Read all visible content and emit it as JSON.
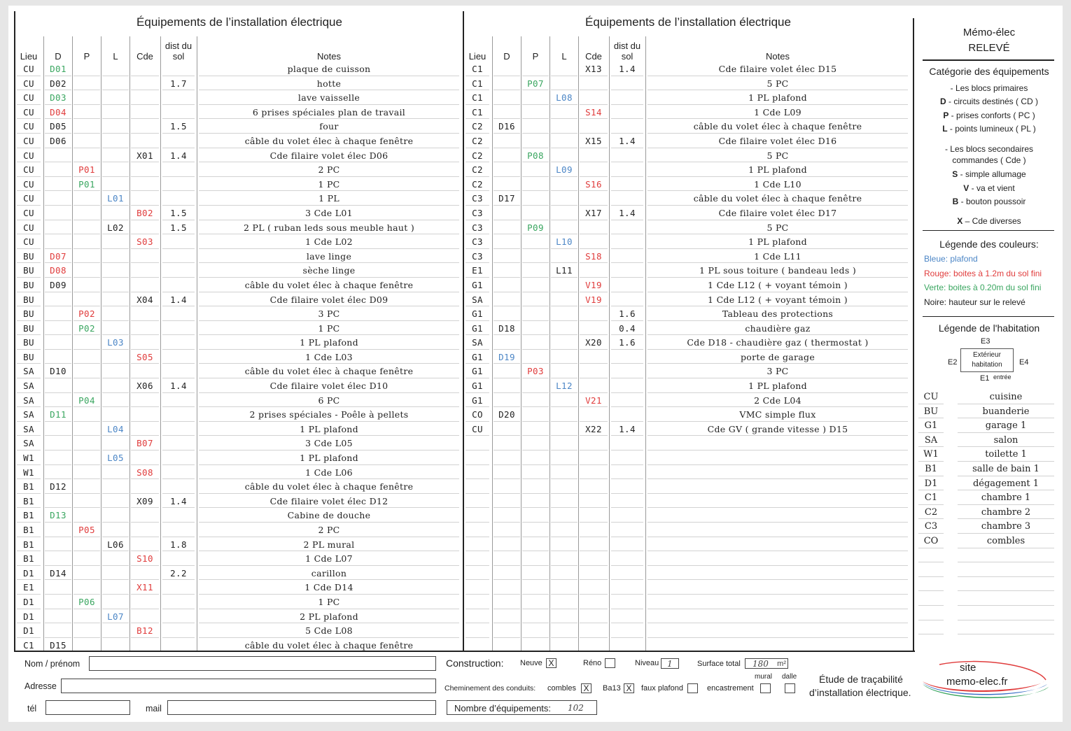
{
  "table_title": "Équipements de l’installation électrique",
  "headers": {
    "lieu": "Lieu",
    "d": "D",
    "p": "P",
    "l": "L",
    "cde": "Cde",
    "dist": "dist du sol",
    "notes": "Notes"
  },
  "left_rows": [
    [
      "CU",
      "D01",
      "",
      "",
      "",
      "",
      "plaque de cuisson",
      "green"
    ],
    [
      "CU",
      "D02",
      "",
      "",
      "",
      "1.7",
      "hotte",
      ""
    ],
    [
      "CU",
      "D03",
      "",
      "",
      "",
      "",
      "lave vaisselle",
      "green"
    ],
    [
      "CU",
      "D04",
      "",
      "",
      "",
      "",
      "6 prises spéciales plan de travail",
      "red"
    ],
    [
      "CU",
      "D05",
      "",
      "",
      "",
      "1.5",
      "four",
      ""
    ],
    [
      "CU",
      "D06",
      "",
      "",
      "",
      "",
      "câble du volet élec à chaque fenêtre",
      ""
    ],
    [
      "CU",
      "",
      "",
      "",
      "X01",
      "1.4",
      "Cde filaire volet élec D06",
      ""
    ],
    [
      "CU",
      "",
      "P01",
      "",
      "",
      "",
      "2 PC",
      "red"
    ],
    [
      "CU",
      "",
      "P01",
      "",
      "",
      "",
      "1 PC",
      "green"
    ],
    [
      "CU",
      "",
      "",
      "L01",
      "",
      "",
      "1 PL",
      "blue"
    ],
    [
      "CU",
      "",
      "",
      "",
      "B02",
      "1.5",
      "3 Cde  L01",
      "red"
    ],
    [
      "CU",
      "",
      "",
      "L02",
      "",
      "1.5",
      "2 PL ( ruban leds sous meuble haut )",
      ""
    ],
    [
      "CU",
      "",
      "",
      "",
      "S03",
      "",
      "1 Cde  L02",
      "red"
    ],
    [
      "BU",
      "D07",
      "",
      "",
      "",
      "",
      "lave linge",
      "red"
    ],
    [
      "BU",
      "D08",
      "",
      "",
      "",
      "",
      "sèche linge",
      "red"
    ],
    [
      "BU",
      "D09",
      "",
      "",
      "",
      "",
      "câble du volet élec à chaque fenêtre",
      ""
    ],
    [
      "BU",
      "",
      "",
      "",
      "X04",
      "1.4",
      "Cde filaire volet élec D09",
      ""
    ],
    [
      "BU",
      "",
      "P02",
      "",
      "",
      "",
      "3 PC",
      "red"
    ],
    [
      "BU",
      "",
      "P02",
      "",
      "",
      "",
      "1 PC",
      "green"
    ],
    [
      "BU",
      "",
      "",
      "L03",
      "",
      "",
      "1 PL plafond",
      "blue"
    ],
    [
      "BU",
      "",
      "",
      "",
      "S05",
      "",
      "1 Cde  L03",
      "red"
    ],
    [
      "SA",
      "D10",
      "",
      "",
      "",
      "",
      "câble du volet élec à chaque fenêtre",
      ""
    ],
    [
      "SA",
      "",
      "",
      "",
      "X06",
      "1.4",
      "Cde filaire volet élec D10",
      ""
    ],
    [
      "SA",
      "",
      "P04",
      "",
      "",
      "",
      "6 PC",
      "green"
    ],
    [
      "SA",
      "D11",
      "",
      "",
      "",
      "",
      "2 prises spéciales - Poêle à pellets",
      "green"
    ],
    [
      "SA",
      "",
      "",
      "L04",
      "",
      "",
      "1 PL plafond",
      "blue"
    ],
    [
      "SA",
      "",
      "",
      "",
      "B07",
      "",
      "3 Cde  L05",
      "red"
    ],
    [
      "W1",
      "",
      "",
      "L05",
      "",
      "",
      "1 PL plafond",
      "blue"
    ],
    [
      "W1",
      "",
      "",
      "",
      "S08",
      "",
      "1 Cde  L06",
      "red"
    ],
    [
      "B1",
      "D12",
      "",
      "",
      "",
      "",
      "câble du volet élec à chaque fenêtre",
      ""
    ],
    [
      "B1",
      "",
      "",
      "",
      "X09",
      "1.4",
      "Cde filaire volet élec D12",
      ""
    ],
    [
      "B1",
      "D13",
      "",
      "",
      "",
      "",
      "Cabine de douche",
      "green"
    ],
    [
      "B1",
      "",
      "P05",
      "",
      "",
      "",
      "2 PC",
      "red"
    ],
    [
      "B1",
      "",
      "",
      "L06",
      "",
      "1.8",
      "2 PL mural",
      ""
    ],
    [
      "B1",
      "",
      "",
      "",
      "S10",
      "",
      "1 Cde  L07",
      "red"
    ],
    [
      "D1",
      "D14",
      "",
      "",
      "",
      "2.2",
      "carillon",
      ""
    ],
    [
      "E1",
      "",
      "",
      "",
      "X11",
      "",
      "1 Cde  D14",
      "red"
    ],
    [
      "D1",
      "",
      "P06",
      "",
      "",
      "",
      "1 PC",
      "green"
    ],
    [
      "D1",
      "",
      "",
      "L07",
      "",
      "",
      "2 PL plafond",
      "blue"
    ],
    [
      "D1",
      "",
      "",
      "",
      "B12",
      "",
      "5 Cde  L08",
      "red"
    ],
    [
      "C1",
      "D15",
      "",
      "",
      "",
      "",
      "câble du volet élec à chaque fenêtre",
      ""
    ]
  ],
  "right_rows": [
    [
      "C1",
      "",
      "",
      "",
      "X13",
      "1.4",
      "Cde filaire volet élec D15",
      ""
    ],
    [
      "C1",
      "",
      "P07",
      "",
      "",
      "",
      "5 PC",
      "green"
    ],
    [
      "C1",
      "",
      "",
      "L08",
      "",
      "",
      "1 PL plafond",
      "blue"
    ],
    [
      "C1",
      "",
      "",
      "",
      "S14",
      "",
      "1 Cde  L09",
      "red"
    ],
    [
      "C2",
      "D16",
      "",
      "",
      "",
      "",
      "câble du volet élec à chaque fenêtre",
      ""
    ],
    [
      "C2",
      "",
      "",
      "",
      "X15",
      "1.4",
      "Cde filaire volet élec D16",
      ""
    ],
    [
      "C2",
      "",
      "P08",
      "",
      "",
      "",
      "5 PC",
      "green"
    ],
    [
      "C2",
      "",
      "",
      "L09",
      "",
      "",
      "1 PL plafond",
      "blue"
    ],
    [
      "C2",
      "",
      "",
      "",
      "S16",
      "",
      "1 Cde  L10",
      "red"
    ],
    [
      "C3",
      "D17",
      "",
      "",
      "",
      "",
      "câble du volet élec à chaque fenêtre",
      ""
    ],
    [
      "C3",
      "",
      "",
      "",
      "X17",
      "1.4",
      "Cde filaire volet élec D17",
      ""
    ],
    [
      "C3",
      "",
      "P09",
      "",
      "",
      "",
      "5 PC",
      "green"
    ],
    [
      "C3",
      "",
      "",
      "L10",
      "",
      "",
      "1 PL plafond",
      "blue"
    ],
    [
      "C3",
      "",
      "",
      "",
      "S18",
      "",
      "1 Cde  L11",
      "red"
    ],
    [
      "E1",
      "",
      "",
      "L11",
      "",
      "",
      "1 PL sous toiture ( bandeau leds )",
      ""
    ],
    [
      "G1",
      "",
      "",
      "",
      "V19",
      "",
      "1 Cde  L12 ( + voyant témoin )",
      "red"
    ],
    [
      "SA",
      "",
      "",
      "",
      "V19",
      "",
      "1 Cde  L12 ( + voyant témoin )",
      "red"
    ],
    [
      "G1",
      "",
      "",
      "",
      "",
      "1.6",
      "Tableau des protections",
      ""
    ],
    [
      "G1",
      "D18",
      "",
      "",
      "",
      "0.4",
      "chaudière gaz",
      ""
    ],
    [
      "SA",
      "",
      "",
      "",
      "X20",
      "1.6",
      "Cde D18 - chaudière gaz ( thermostat )",
      ""
    ],
    [
      "G1",
      "D19",
      "",
      "",
      "",
      "",
      "porte de garage",
      "blue"
    ],
    [
      "G1",
      "",
      "P03",
      "",
      "",
      "",
      "3 PC",
      "red"
    ],
    [
      "G1",
      "",
      "",
      "L12",
      "",
      "",
      "1 PL plafond",
      "blue"
    ],
    [
      "G1",
      "",
      "",
      "",
      "V21",
      "",
      "2 Cde  L04",
      "red"
    ],
    [
      "CO",
      "D20",
      "",
      "",
      "",
      "",
      "VMC simple flux",
      ""
    ],
    [
      "CU",
      "",
      "",
      "",
      "X22",
      "1.4",
      "Cde GV ( grande vitesse ) D15",
      ""
    ],
    [
      "",
      "",
      "",
      "",
      "",
      "",
      "",
      ""
    ],
    [
      "",
      "",
      "",
      "",
      "",
      "",
      "",
      ""
    ],
    [
      "",
      "",
      "",
      "",
      "",
      "",
      "",
      ""
    ],
    [
      "",
      "",
      "",
      "",
      "",
      "",
      "",
      ""
    ],
    [
      "",
      "",
      "",
      "",
      "",
      "",
      "",
      ""
    ],
    [
      "",
      "",
      "",
      "",
      "",
      "",
      "",
      ""
    ],
    [
      "",
      "",
      "",
      "",
      "",
      "",
      "",
      ""
    ],
    [
      "",
      "",
      "",
      "",
      "",
      "",
      "",
      ""
    ],
    [
      "",
      "",
      "",
      "",
      "",
      "",
      "",
      ""
    ],
    [
      "",
      "",
      "",
      "",
      "",
      "",
      "",
      ""
    ],
    [
      "",
      "",
      "",
      "",
      "",
      "",
      "",
      ""
    ],
    [
      "",
      "",
      "",
      "",
      "",
      "",
      "",
      ""
    ],
    [
      "",
      "",
      "",
      "",
      "",
      "",
      "",
      ""
    ],
    [
      "",
      "",
      "",
      "",
      "",
      "",
      "",
      ""
    ],
    [
      "",
      "",
      "",
      "",
      "",
      "",
      "",
      ""
    ]
  ],
  "memo": {
    "title": "Mémo-élec",
    "subtitle": "RELEVÉ",
    "cat_title": "Catégorie des équipements",
    "primary": "- Les blocs primaires",
    "d_key": "D",
    "d_text": " - circuits destinés ( CD )",
    "p_key": "P",
    "p_text": " - prises conforts ( PC )",
    "l_key": "L",
    "l_text": " - points lumineux ( PL )",
    "secondary1": "- Les blocs secondaires",
    "secondary2": "commandes  ( Cde )",
    "s_key": "S",
    "s_text": " - simple allumage",
    "v_key": "V",
    "v_text": " - va et vient",
    "b_key": "B",
    "b_text": " - bouton poussoir",
    "x_key": "X",
    "x_text": " – Cde diverses",
    "colors_title": "Légende des couleurs:",
    "blue_text": "Bleue: plafond",
    "red_text": "Rouge: boites à 1.2m du sol fini",
    "green_text": "Verte: boites à 0.20m du sol fini",
    "black_text": "Noire: hauteur sur le relevé",
    "hab_title": "Légende de l'habitation",
    "e1": "E1",
    "e2": "E2",
    "e3": "E3",
    "e4": "E4",
    "entree": "entrée",
    "box_line1": "Extérieur",
    "box_line2": "habitation",
    "rooms": [
      [
        "CU",
        "cuisine"
      ],
      [
        "BU",
        "buanderie"
      ],
      [
        "G1",
        "garage 1"
      ],
      [
        "SA",
        "salon"
      ],
      [
        "W1",
        "toilette 1"
      ],
      [
        "B1",
        "salle de bain 1"
      ],
      [
        "D1",
        "dégagement 1"
      ],
      [
        "C1",
        "chambre 1"
      ],
      [
        "C2",
        "chambre 2"
      ],
      [
        "C3",
        "chambre 3"
      ],
      [
        "CO",
        "combles"
      ],
      [
        "",
        ""
      ],
      [
        "",
        ""
      ],
      [
        "",
        ""
      ],
      [
        "",
        ""
      ],
      [
        "",
        ""
      ],
      [
        "",
        ""
      ]
    ]
  },
  "form": {
    "nom_label": "Nom / prénom",
    "adresse_label": "Adresse",
    "tel_label": "tél",
    "mail_label": "mail",
    "construction_label": "Construction:",
    "neuve_label": "Neuve",
    "neuve_value": "X",
    "reno_label": "Réno",
    "niveau_label": "Niveau",
    "niveau_value": "1",
    "surface_label": "Surface total",
    "surface_value": "180",
    "surface_unit": "m²",
    "chemin_label": "Cheminement des conduits:",
    "combles_label": "combles",
    "combles_value": "X",
    "ba13_label": "Ba13",
    "ba13_value": "X",
    "faux_label": "faux plafond",
    "encast_label": "encastrement",
    "mural_label": "mural",
    "dalle_label": "dalle",
    "nombre_label": "Nombre d’équipements:",
    "nombre_value": "102",
    "etude1": "Étude de traçabilité",
    "etude2": "d’installation électrique.",
    "site1": "site",
    "site2": "memo-elec.fr"
  },
  "colors": {
    "blue": "#4c86c6",
    "red": "#e03c3c",
    "green": "#3aa660"
  }
}
